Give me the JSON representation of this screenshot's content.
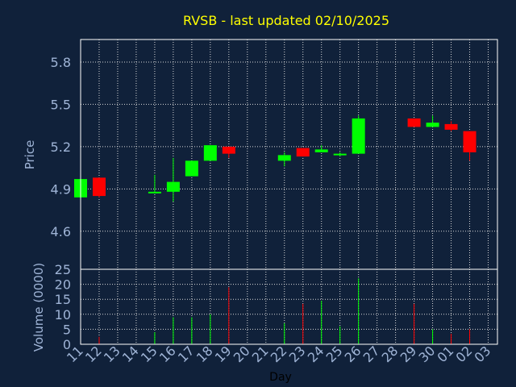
{
  "chart_data": {
    "type": "candlestick",
    "title": "RVSB - last updated 02/10/2025",
    "colors": {
      "background": "#10213a",
      "title": "#ffff00",
      "axis_text": "#9fb4d6",
      "grid": "#d9d9d9",
      "frame": "#ffffff",
      "up": "#00ff00",
      "down": "#ff0000"
    },
    "x_labels": [
      "11",
      "12",
      "13",
      "14",
      "15",
      "16",
      "17",
      "18",
      "19",
      "20",
      "21",
      "22",
      "23",
      "24",
      "25",
      "26",
      "27",
      "28",
      "29",
      "30",
      "01",
      "02",
      "03"
    ],
    "xlabel": "Day",
    "price_panel": {
      "ylabel": "Price",
      "yticks": [
        4.6,
        4.9,
        5.2,
        5.5,
        5.8
      ],
      "ytick_labels": [
        "4.6",
        "4.9",
        "5.2",
        "5.5",
        "5.8"
      ],
      "ylim": [
        4.33,
        5.96
      ],
      "grid": true
    },
    "volume_panel": {
      "ylabel": "Volume (0000)",
      "yticks": [
        0,
        5,
        10,
        15,
        20,
        25
      ],
      "ytick_labels": [
        "0",
        "5",
        "10",
        "15",
        "20",
        "25"
      ],
      "ylim": [
        0,
        25
      ],
      "grid": true
    },
    "candles": [
      {
        "x": "11",
        "open": 4.84,
        "high": 4.97,
        "low": 4.84,
        "close": 4.97
      },
      {
        "x": "12",
        "open": 4.98,
        "high": 4.98,
        "low": 4.84,
        "close": 4.85
      },
      {
        "x": "15",
        "open": 4.87,
        "high": 5.0,
        "low": 4.87,
        "close": 4.88
      },
      {
        "x": "16",
        "open": 4.88,
        "high": 5.12,
        "low": 4.81,
        "close": 4.95
      },
      {
        "x": "17",
        "open": 4.99,
        "high": 5.1,
        "low": 4.99,
        "close": 5.1
      },
      {
        "x": "18",
        "open": 5.1,
        "high": 5.21,
        "low": 5.1,
        "close": 5.21
      },
      {
        "x": "19",
        "open": 5.2,
        "high": 5.2,
        "low": 5.12,
        "close": 5.15
      },
      {
        "x": "22",
        "open": 5.1,
        "high": 5.16,
        "low": 5.06,
        "close": 5.14
      },
      {
        "x": "23",
        "open": 5.19,
        "high": 5.19,
        "low": 5.13,
        "close": 5.13
      },
      {
        "x": "24",
        "open": 5.16,
        "high": 5.21,
        "low": 5.16,
        "close": 5.18
      },
      {
        "x": "25",
        "open": 5.14,
        "high": 5.16,
        "low": 5.13,
        "close": 5.15
      },
      {
        "x": "26",
        "open": 5.15,
        "high": 5.42,
        "low": 5.15,
        "close": 5.4
      },
      {
        "x": "29",
        "open": 5.4,
        "high": 5.4,
        "low": 5.34,
        "close": 5.34
      },
      {
        "x": "30",
        "open": 5.34,
        "high": 5.42,
        "low": 5.34,
        "close": 5.37
      },
      {
        "x": "01",
        "open": 5.36,
        "high": 5.38,
        "low": 5.31,
        "close": 5.32
      },
      {
        "x": "02",
        "open": 5.31,
        "high": 5.31,
        "low": 5.1,
        "close": 5.16
      }
    ],
    "volume": [
      {
        "x": "12",
        "value": 2.5,
        "direction": "down"
      },
      {
        "x": "15",
        "value": 4,
        "direction": "up"
      },
      {
        "x": "16",
        "value": 9,
        "direction": "up"
      },
      {
        "x": "17",
        "value": 9,
        "direction": "up"
      },
      {
        "x": "18",
        "value": 10,
        "direction": "up"
      },
      {
        "x": "19",
        "value": 19,
        "direction": "down"
      },
      {
        "x": "22",
        "value": 7,
        "direction": "up"
      },
      {
        "x": "23",
        "value": 13.5,
        "direction": "down"
      },
      {
        "x": "24",
        "value": 14.5,
        "direction": "up"
      },
      {
        "x": "25",
        "value": 6,
        "direction": "up"
      },
      {
        "x": "26",
        "value": 22,
        "direction": "up"
      },
      {
        "x": "29",
        "value": 13.5,
        "direction": "down"
      },
      {
        "x": "30",
        "value": 5,
        "direction": "up"
      },
      {
        "x": "01",
        "value": 3.5,
        "direction": "down"
      },
      {
        "x": "02",
        "value": 5,
        "direction": "down"
      }
    ]
  }
}
